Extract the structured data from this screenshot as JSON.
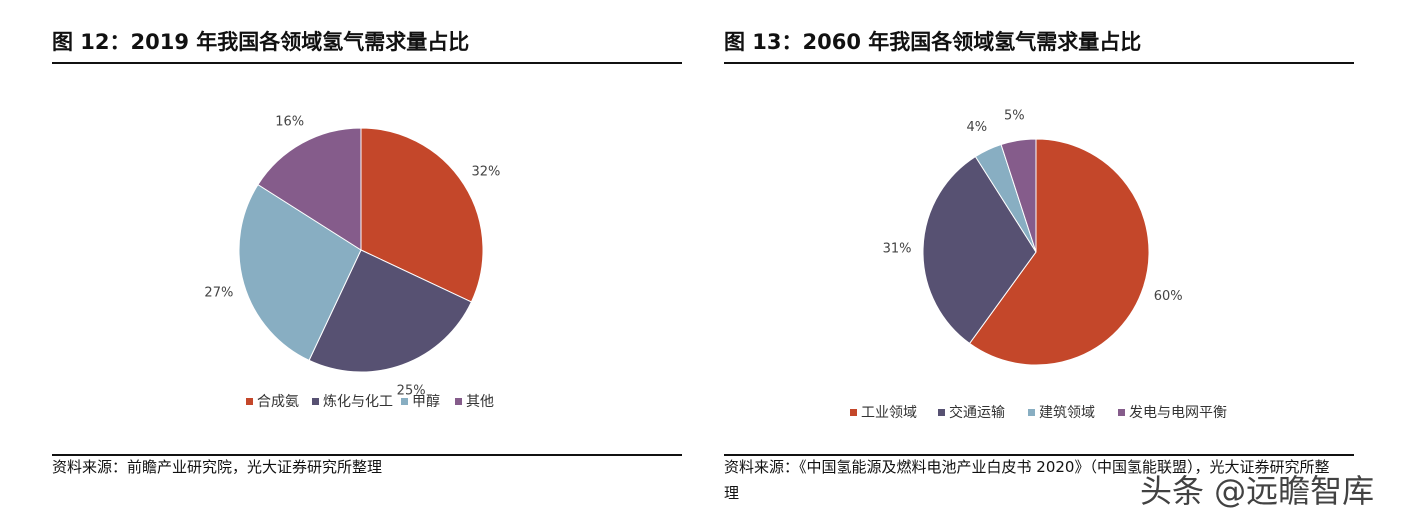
{
  "chart_data": [
    {
      "type": "pie",
      "title": "图 12：2019 年我国各领域氢气需求量占比",
      "categories": [
        "合成氨",
        "炼化与化工",
        "甲醇",
        "其他"
      ],
      "values": [
        32,
        25,
        27,
        16
      ],
      "labels": [
        "32%",
        "25%",
        "27%",
        "16%"
      ],
      "colors": [
        "#C4472A",
        "#575172",
        "#88AEC2",
        "#855C8B"
      ],
      "legend": "bottom",
      "source": "资料来源：前瞻产业研究院，光大证券研究所整理"
    },
    {
      "type": "pie",
      "title": "图 13：2060 年我国各领域氢气需求量占比",
      "categories": [
        "工业领域",
        "交通运输",
        "建筑领域",
        "发电与电网平衡"
      ],
      "values": [
        60,
        31,
        4,
        5
      ],
      "labels": [
        "60%",
        "31%",
        "4%",
        "5%"
      ],
      "colors": [
        "#C4472A",
        "#575172",
        "#88AEC2",
        "#855C8B"
      ],
      "legend": "bottom",
      "source": "资料来源：《中国氢能源及燃料电池产业白皮书 2020》（中国氢能联盟），光大证券研究所整理"
    }
  ],
  "watermark": "头条 @远瞻智库"
}
